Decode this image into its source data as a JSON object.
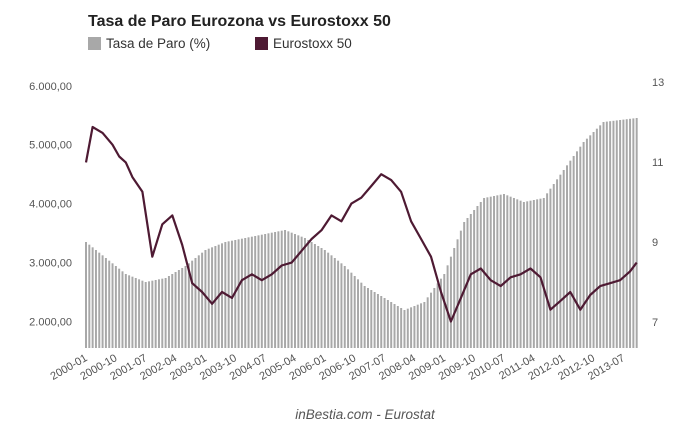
{
  "chart_data": {
    "type": "bar+line",
    "title": "Tasa de Paro Eurozona vs Eurostoxx 50",
    "source": "inBestia.com - Eurostat",
    "legend_placement": "top-left",
    "grid": false,
    "x_tick_labels": [
      "2000-01",
      "2000-10",
      "2001-07",
      "2002-04",
      "2003-01",
      "2003-10",
      "2004-07",
      "2005-04",
      "2006-01",
      "2006-10",
      "2007-07",
      "2008-04",
      "2009-01",
      "2009-10",
      "2010-07",
      "2011-04",
      "2012-01",
      "2012-10",
      "2013-07"
    ],
    "y_left": {
      "ticks": [
        "2.000,00",
        "3.000,00",
        "4.000,00",
        "5.000,00",
        "6.000,00"
      ],
      "range": [
        1550,
        6200
      ]
    },
    "y_right": {
      "ticks": [
        "7",
        "9",
        "11",
        "13"
      ],
      "range": [
        6.35,
        13.2
      ]
    },
    "series": [
      {
        "name": "Tasa de Paro (%)",
        "kind": "bar",
        "axis": "right",
        "color": "#a8a8a8",
        "x": [
          "2000-01",
          "2000-07",
          "2001-01",
          "2001-07",
          "2002-01",
          "2002-07",
          "2003-01",
          "2003-07",
          "2004-01",
          "2004-07",
          "2005-01",
          "2005-07",
          "2006-01",
          "2006-07",
          "2007-01",
          "2007-07",
          "2008-01",
          "2008-07",
          "2009-01",
          "2009-07",
          "2010-01",
          "2010-07",
          "2011-01",
          "2011-07",
          "2012-01",
          "2012-07",
          "2013-01",
          "2013-11"
        ],
        "values": [
          9.0,
          8.6,
          8.2,
          8.0,
          8.1,
          8.4,
          8.8,
          9.0,
          9.1,
          9.2,
          9.3,
          9.1,
          8.8,
          8.4,
          7.9,
          7.6,
          7.3,
          7.5,
          8.2,
          9.5,
          10.1,
          10.2,
          10.0,
          10.1,
          10.8,
          11.5,
          12.0,
          12.1
        ]
      },
      {
        "name": "Eurostoxx 50",
        "kind": "line",
        "axis": "left",
        "color": "#4e1a33",
        "x": [
          "2000-01",
          "2000-03",
          "2000-06",
          "2000-09",
          "2000-11",
          "2001-01",
          "2001-03",
          "2001-06",
          "2001-09",
          "2001-12",
          "2002-03",
          "2002-06",
          "2002-09",
          "2002-12",
          "2003-03",
          "2003-06",
          "2003-09",
          "2003-12",
          "2004-03",
          "2004-06",
          "2004-09",
          "2004-12",
          "2005-03",
          "2005-06",
          "2005-09",
          "2005-12",
          "2006-03",
          "2006-06",
          "2006-09",
          "2006-12",
          "2007-03",
          "2007-06",
          "2007-09",
          "2007-12",
          "2008-03",
          "2008-06",
          "2008-09",
          "2008-12",
          "2009-03",
          "2009-06",
          "2009-09",
          "2009-12",
          "2010-03",
          "2010-06",
          "2010-09",
          "2010-12",
          "2011-03",
          "2011-06",
          "2011-09",
          "2011-12",
          "2012-03",
          "2012-06",
          "2012-09",
          "2012-12",
          "2013-03",
          "2013-06",
          "2013-09",
          "2013-11"
        ],
        "values": [
          4700,
          5300,
          5200,
          5000,
          4800,
          4700,
          4450,
          4200,
          3100,
          3650,
          3800,
          3300,
          2650,
          2500,
          2300,
          2500,
          2400,
          2700,
          2800,
          2700,
          2800,
          2950,
          3000,
          3200,
          3400,
          3550,
          3800,
          3700,
          4000,
          4100,
          4300,
          4500,
          4400,
          4200,
          3700,
          3400,
          3100,
          2500,
          2000,
          2400,
          2800,
          2900,
          2700,
          2600,
          2750,
          2800,
          2900,
          2750,
          2200,
          2350,
          2500,
          2200,
          2450,
          2600,
          2650,
          2700,
          2850,
          3000
        ]
      }
    ]
  }
}
